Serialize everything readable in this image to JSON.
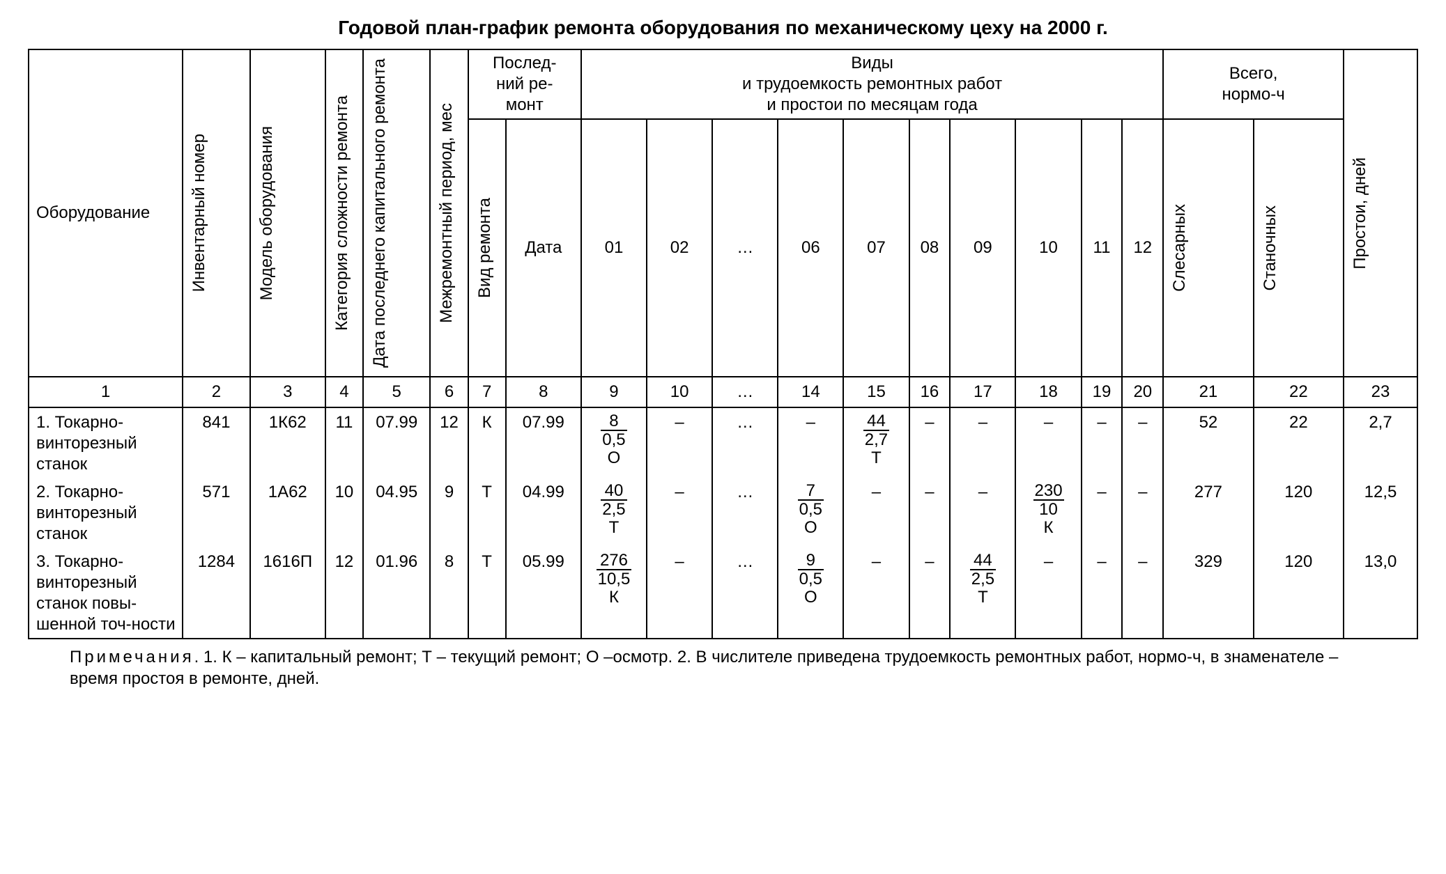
{
  "title": "Годовой план-график ремонта оборудования по механическому цеху на 2000 г.",
  "headers": {
    "equipment": "Оборудование",
    "inv_no": "Инвентарный номер",
    "model": "Модель оборудования",
    "category": "Категория сложности ремонта",
    "last_capital": "Дата последнего капитального ремонта",
    "period": "Межремонтный период, мес",
    "last_repair_group": "Послед-\nний ре-\nмонт",
    "repair_type": "Вид ремонта",
    "repair_date": "Дата",
    "months_group": "Виды\nи трудоемкость ремонтных работ\nи простои по месяцам года",
    "m01": "01",
    "m02": "02",
    "mdots": "…",
    "m06": "06",
    "m07": "07",
    "m08": "08",
    "m09": "09",
    "m10": "10",
    "m11": "11",
    "m12": "12",
    "total_group": "Всего,\nнормо-ч",
    "total_sles": "Слесарных",
    "total_stan": "Станочных",
    "downtime": "Простои, дней"
  },
  "colnums": [
    "1",
    "2",
    "3",
    "4",
    "5",
    "6",
    "7",
    "8",
    "9",
    "10",
    "…",
    "14",
    "15",
    "16",
    "17",
    "18",
    "19",
    "20",
    "21",
    "22",
    "23"
  ],
  "rows": [
    {
      "name": "1. Токарно-винторезный станок",
      "inv": "841",
      "model": "1К62",
      "cat": "11",
      "kap": "07.99",
      "per": "12",
      "vid": "К",
      "date": "07.99",
      "months": [
        {
          "num": "8",
          "den": "0,5",
          "lab": "О"
        },
        "–",
        "…",
        "–",
        {
          "num": "44",
          "den": "2,7",
          "lab": "Т"
        },
        "–",
        "–",
        "–",
        "–",
        "–"
      ],
      "sles": "52",
      "stan": "22",
      "down": "2,7"
    },
    {
      "name": "2. Токарно-винторезный станок",
      "inv": "571",
      "model": "1А62",
      "cat": "10",
      "kap": "04.95",
      "per": "9",
      "vid": "Т",
      "date": "04.99",
      "months": [
        {
          "num": "40",
          "den": "2,5",
          "lab": "Т"
        },
        "–",
        "…",
        {
          "num": "7",
          "den": "0,5",
          "lab": "О"
        },
        "–",
        "–",
        "–",
        {
          "num": "230",
          "den": "10",
          "lab": "К"
        },
        "–",
        "–"
      ],
      "sles": "277",
      "stan": "120",
      "down": "12,5"
    },
    {
      "name": "3. Токарно-винторезный станок повы-шенной точ-ности",
      "inv": "1284",
      "model": "1616П",
      "cat": "12",
      "kap": "01.96",
      "per": "8",
      "vid": "Т",
      "date": "05.99",
      "months": [
        {
          "num": "276",
          "den": "10,5",
          "lab": "К"
        },
        "–",
        "…",
        {
          "num": "9",
          "den": "0,5",
          "lab": "О"
        },
        "–",
        "–",
        {
          "num": "44",
          "den": "2,5",
          "lab": "Т"
        },
        "–",
        "–",
        "–"
      ],
      "sles": "329",
      "stan": "120",
      "down": "13,0"
    }
  ],
  "notes": {
    "lead": "Примечания",
    "text": ". 1. К – капитальный ремонт; Т – текущий ремонт; О –осмотр. 2. В числителе приведена трудоемкость ремонтных работ, нормо-ч, в знаменателе – время простоя в ремонте, дней."
  }
}
